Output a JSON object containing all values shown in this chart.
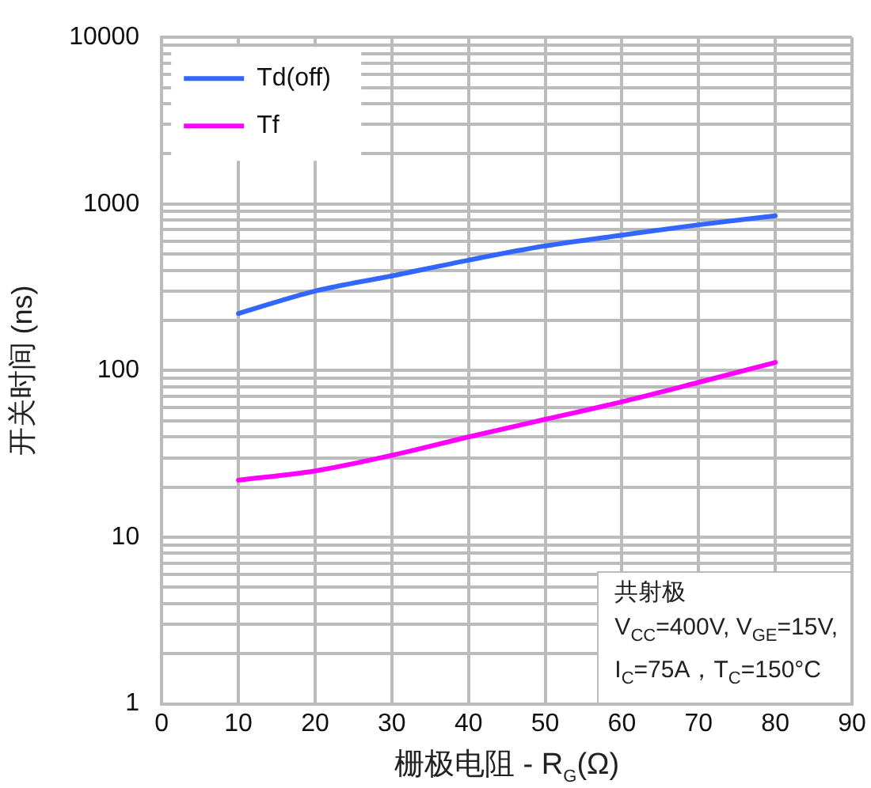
{
  "chart_data": {
    "type": "line",
    "xlabel": "栅极电阻 - R$_{G}$(Ω)",
    "ylabel": "开关时间 (ns)",
    "x": [
      10,
      20,
      30,
      40,
      50,
      60,
      70,
      80
    ],
    "series": [
      {
        "name": "Td(off)",
        "color": "#3366ff",
        "values": [
          220,
          300,
          370,
          460,
          560,
          650,
          750,
          850
        ]
      },
      {
        "name": "Tf",
        "color": "#ff00ff",
        "values": [
          22,
          25,
          31,
          40,
          51,
          65,
          85,
          112
        ]
      }
    ],
    "xlim": [
      0,
      90
    ],
    "xticks": [
      0,
      10,
      20,
      30,
      40,
      50,
      60,
      70,
      80,
      90
    ],
    "ylim": [
      1,
      10000
    ],
    "yticks": [
      1,
      10,
      100,
      1000,
      10000
    ],
    "log": "y",
    "grid": true,
    "legend": "top left",
    "marker": "none",
    "line_style": "solid",
    "annotations": [
      "共射极",
      "V$_{CC}$=400V, V$_{GE}$=15V,",
      "I$_{C}$=75A，T$_{C}$=150°C"
    ]
  }
}
